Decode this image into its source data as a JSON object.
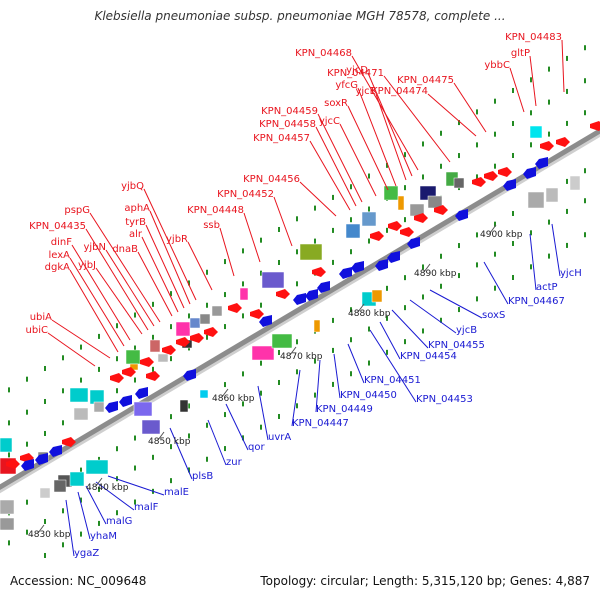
{
  "title": "Klebsiella pneumoniae subsp. pneumoniae MGH 78578, complete ...",
  "footer": {
    "accession": "Accession: NC_009648",
    "topology": "Topology: circular; Length: 5,315,120 bp; Genes: 4,887"
  },
  "colors": {
    "forward_label": "#e8141e",
    "reverse_label": "#1a1ad2",
    "axis": "#8c8c8c",
    "tick": "#228b22"
  },
  "kbp_ticks": [
    "4830 kbp",
    "4840 kbp",
    "4850 kbp",
    "4860 kbp",
    "4870 kbp",
    "4880 kbp",
    "4890 kbp",
    "4900 kbp"
  ],
  "forward_labels": [
    "ubiC",
    "ubiA",
    "dgkA",
    "lexA",
    "dinF",
    "yjbJ",
    "KPN_04435",
    "yjbN",
    "pspG",
    "dnaB",
    "alr",
    "tyrB",
    "aphA",
    "yjbQ",
    "yjbR",
    "ssb",
    "KPN_04448",
    "KPN_04452",
    "KPN_04456",
    "KPN_04457",
    "KPN_04458",
    "KPN_04459",
    "yjcC",
    "soxR",
    "yfcG",
    "yjcE",
    "yjcD",
    "KPN_04468",
    "KPN_04471",
    "KPN_04474",
    "KPN_04475",
    "ybbC",
    "gltP",
    "KPN_04483"
  ],
  "reverse_labels": [
    "ygaZ",
    "yhaM",
    "malG",
    "malF",
    "malE",
    "plsB",
    "zur",
    "qor",
    "uvrA",
    "KPN_04447",
    "KPN_04449",
    "KPN_04450",
    "KPN_04451",
    "KPN_04453",
    "KPN_04454",
    "KPN_04455",
    "yjcB",
    "soxS",
    "KPN_04467",
    "actP",
    "yjcH"
  ]
}
